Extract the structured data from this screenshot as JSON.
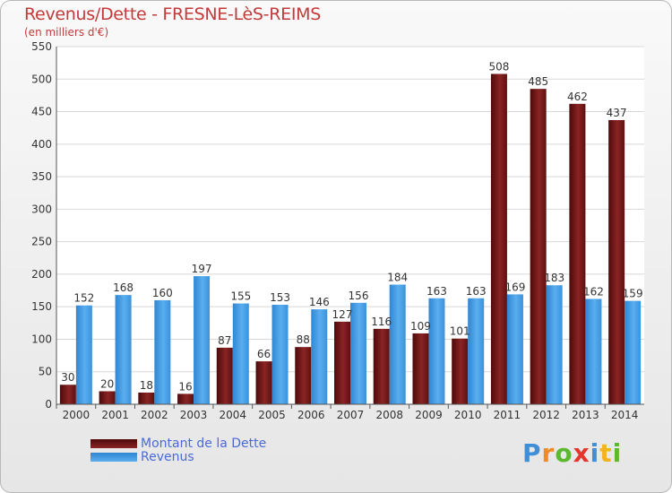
{
  "title": "Revenus/Dette - FRESNE-LèS-REIMS",
  "subtitle": "(en milliers d'€)",
  "brand": {
    "letters": [
      "P",
      "r",
      "o",
      "x",
      "i",
      "t",
      "i"
    ],
    "colors": [
      "#3f8fd8",
      "#f08a24",
      "#5cb82e",
      "#e6352b",
      "#3f8fd8",
      "#f0b51e",
      "#5cb82e"
    ]
  },
  "colors": {
    "debt": "#7a1a1a",
    "revenue": "#3a93dc",
    "title": "#c43a3a",
    "legend_text": "#4a6ad8"
  },
  "chart_data": {
    "type": "bar",
    "title": "Revenus/Dette - FRESNE-LèS-REIMS",
    "ylabel": "(en milliers d'€)",
    "ylim": [
      0,
      550
    ],
    "yticks": [
      0,
      50,
      100,
      150,
      200,
      250,
      300,
      350,
      400,
      450,
      500,
      550
    ],
    "grid": true,
    "legend_position": "bottom-left",
    "categories": [
      "2000",
      "2001",
      "2002",
      "2003",
      "2004",
      "2005",
      "2006",
      "2007",
      "2008",
      "2009",
      "2010",
      "2011",
      "2012",
      "2013",
      "2014"
    ],
    "series": [
      {
        "name": "Montant de la Dette",
        "values": [
          30,
          20,
          18,
          16,
          87,
          66,
          88,
          127,
          116,
          109,
          101,
          508,
          485,
          462,
          437
        ]
      },
      {
        "name": "Revenus",
        "values": [
          152,
          168,
          160,
          197,
          155,
          153,
          146,
          156,
          184,
          163,
          163,
          169,
          183,
          162,
          159
        ]
      }
    ]
  }
}
